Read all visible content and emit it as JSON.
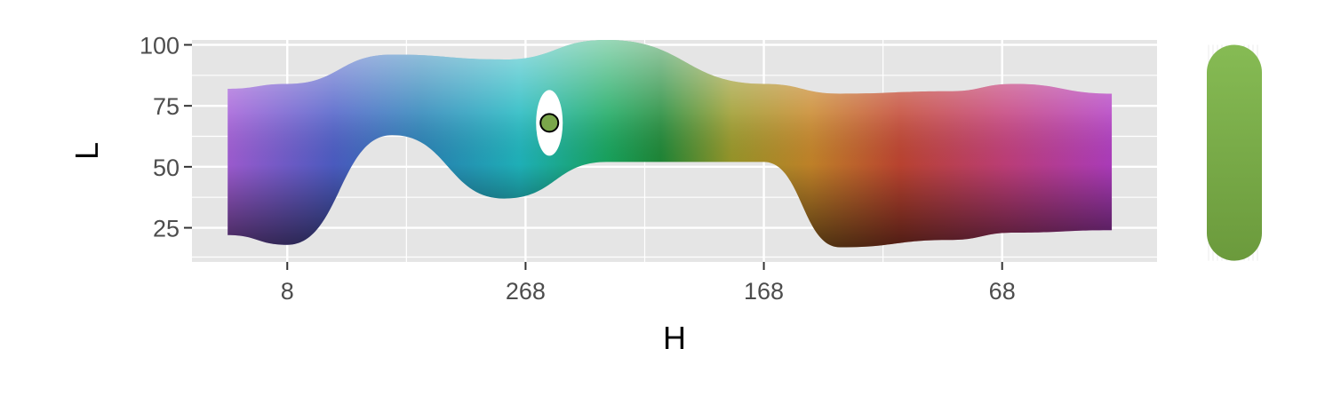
{
  "chart_data": {
    "type": "area",
    "xlabel": "H",
    "ylabel": "L",
    "x_tick_labels": [
      "8",
      "268",
      "168",
      "68"
    ],
    "x_tick_positions": [
      30,
      130,
      230,
      330
    ],
    "xlim": [
      -10,
      395
    ],
    "ylim": [
      11,
      102
    ],
    "y_ticks": [
      25,
      50,
      75,
      100
    ],
    "grid": true,
    "legend": "none",
    "series": [
      {
        "type": "area",
        "x": [
          5,
          30,
          74,
          121,
          164,
          230,
          262,
          308,
          335,
          376
        ],
        "upper": [
          82,
          84,
          96,
          94,
          102,
          84,
          80,
          81,
          84,
          80
        ],
        "lower": [
          22,
          18,
          63,
          37,
          52,
          52,
          17,
          20,
          23,
          24
        ]
      },
      {
        "type": "point",
        "x": 140,
        "y": 68,
        "color": "#7aa64a"
      }
    ],
    "colors": {
      "panel": "#e5e5e5",
      "grid": "#ffffff",
      "selected": "#7aa64a",
      "swatch": "#7fb04c"
    }
  }
}
